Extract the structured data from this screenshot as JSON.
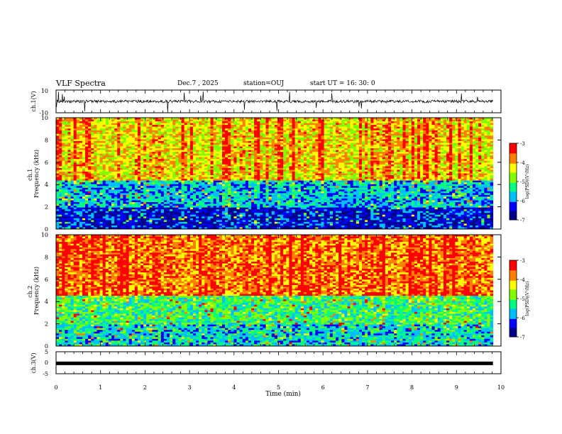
{
  "header": {
    "title": "VLF Spectra",
    "date": "Dec.7 , 2025",
    "station": "station=OUJ",
    "start_ut": "start UT = 16: 30: 0"
  },
  "chart_data": [
    {
      "type": "line",
      "name": "ch1-waveform",
      "ylabel": "ch.1(V)",
      "ylim": [
        -10,
        10
      ],
      "yticks": [
        "10",
        "-10"
      ],
      "xlim": [
        0,
        10
      ],
      "description_values": {
        "baseline": 0,
        "typical_amplitude": 1.5,
        "spike_amplitude": 10
      }
    },
    {
      "type": "heatmap",
      "name": "ch1-spectrogram",
      "ylabel": "ch.1 Frequency (kHz)",
      "ylim": [
        0,
        10
      ],
      "yticks": [
        "0",
        "2",
        "4",
        "6",
        "8",
        "10"
      ],
      "xlim": [
        0,
        9.82
      ],
      "colorbar": {
        "label": "log(PSD)(V²/Hz)",
        "range": [
          -7,
          -3
        ],
        "ticks": [
          "-3",
          "-4",
          "-5",
          "-6",
          "-7"
        ]
      },
      "bands": [
        {
          "fmin": 0,
          "fmax": 2,
          "level": -6.5
        },
        {
          "fmin": 2,
          "fmax": 4.3,
          "level": -5.8
        },
        {
          "fmin": 4.3,
          "fmax": 10,
          "level": -4.3
        }
      ]
    },
    {
      "type": "heatmap",
      "name": "ch2-spectrogram",
      "ylabel": "ch.2 Frequency (kHz)",
      "ylim": [
        0,
        10
      ],
      "yticks": [
        "0",
        "2",
        "4",
        "6",
        "8",
        "10"
      ],
      "xlim": [
        0,
        9.82
      ],
      "colorbar": {
        "label": "log(PSD)(V²/Hz)",
        "range": [
          -7,
          -3
        ],
        "ticks": [
          "-3",
          "-4",
          "-5",
          "-6",
          "-7"
        ]
      },
      "bands": [
        {
          "fmin": 0,
          "fmax": 2,
          "level": -5.6
        },
        {
          "fmin": 2,
          "fmax": 4.5,
          "level": -5.2
        },
        {
          "fmin": 4.5,
          "fmax": 10,
          "level": -3.8
        }
      ]
    },
    {
      "type": "line",
      "name": "ch3-waveform",
      "ylabel": "ch.3(V)",
      "ylim": [
        -5,
        5
      ],
      "yticks": [
        "5",
        "0",
        "-5"
      ],
      "x": [
        0,
        9.82
      ],
      "y": [
        -0.3,
        -0.3
      ]
    }
  ],
  "xaxis": {
    "label": "Time (min)",
    "ticks": [
      "0",
      "1",
      "2",
      "3",
      "4",
      "5",
      "6",
      "7",
      "8",
      "9",
      "10"
    ]
  },
  "colors": {
    "colormap": [
      "#00008b",
      "#0000ff",
      "#00bfff",
      "#00ff80",
      "#80ff00",
      "#ffff00",
      "#ff8000",
      "#ff0000",
      "#ffffff"
    ]
  }
}
